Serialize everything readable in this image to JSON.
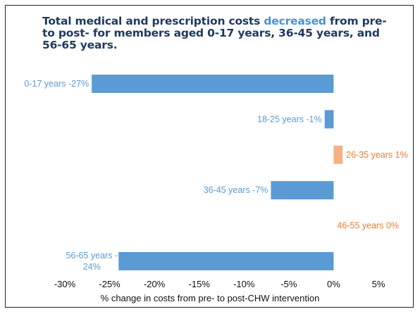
{
  "title": {
    "part1": "Total medical and prescription costs ",
    "highlight": "decreased",
    "part2": " from pre- to post- for members aged 0-17 years, 36-45 years, and 56-65 years."
  },
  "chart_data": {
    "type": "bar",
    "orientation": "horizontal",
    "title": "Total medical and prescription costs decreased from pre- to post- for members aged 0-17 years, 36-45 years, and 56-65 years.",
    "xlabel": "% change in costs from pre- to post-CHW intervention",
    "xlim": [
      -30,
      5
    ],
    "xticks": [
      -30,
      -25,
      -20,
      -15,
      -10,
      -5,
      0,
      5
    ],
    "xtick_labels": [
      "-30%",
      "-25%",
      "-20%",
      "-15%",
      "-10%",
      "-5%",
      "0%",
      "5%"
    ],
    "categories": [
      "0-17 years",
      "18-25 years",
      "26-35 years",
      "36-45 years",
      "46-55 years",
      "56-65 years"
    ],
    "values": [
      -27,
      -1,
      1,
      -7,
      0,
      -24
    ],
    "data_labels": [
      [
        "0-17 years -27%"
      ],
      [
        "18-25 years -1%"
      ],
      [
        "26-35 years 1%"
      ],
      [
        "36-45 years -7%"
      ],
      [
        "46-55 years 0%"
      ],
      [
        "56-65 years -",
        "24%"
      ]
    ],
    "colors": {
      "negative": "#5b9bd5",
      "positive": "#f4b183",
      "positive_label": "#ed7d31"
    },
    "grid": false,
    "legend": "none"
  }
}
